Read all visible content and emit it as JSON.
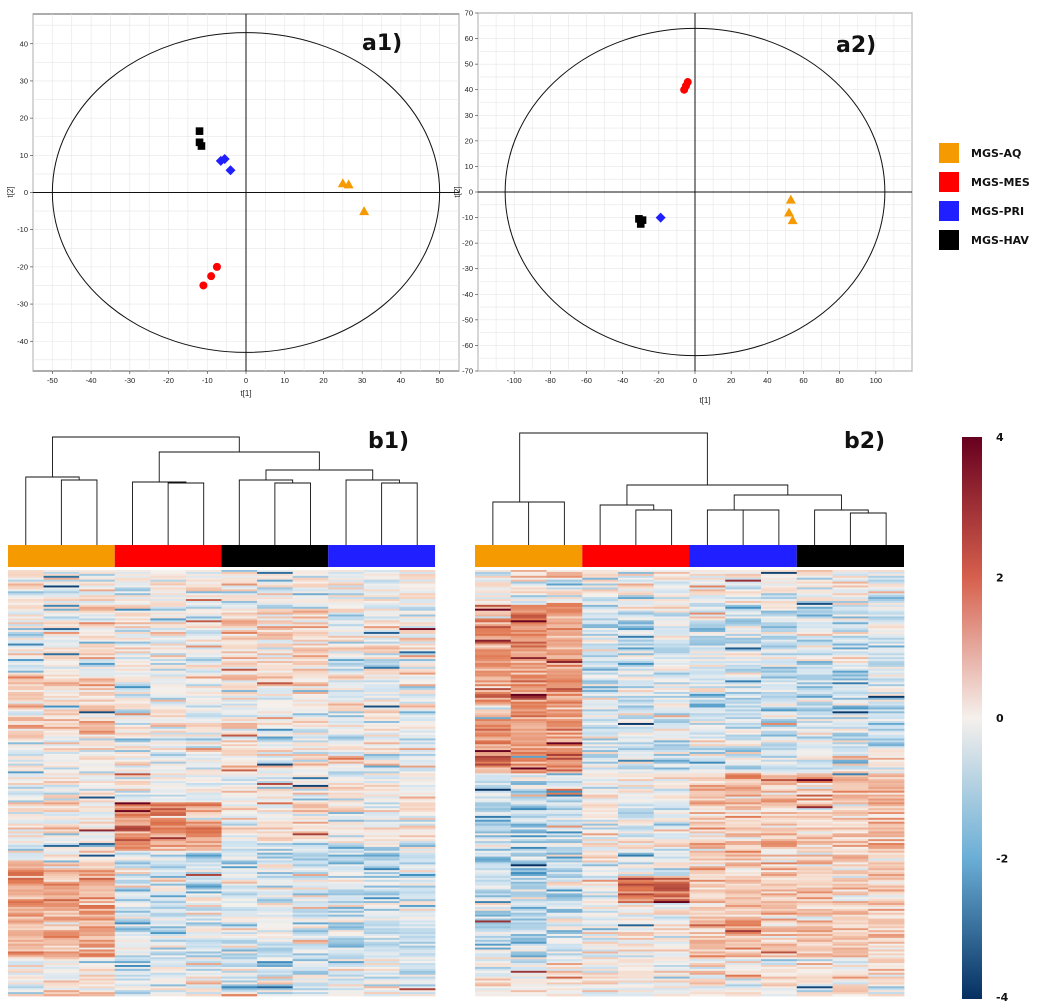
{
  "chart_data": [
    {
      "panel": "a1)",
      "type": "scatter",
      "xlabel": "t[1]",
      "ylabel": "t[2]",
      "xlim": [
        -55,
        55
      ],
      "ylim": [
        -48,
        48
      ],
      "xticks": [
        -50,
        -40,
        -30,
        -20,
        -10,
        0,
        10,
        20,
        30,
        40,
        50
      ],
      "yticks": [
        -40,
        -30,
        -20,
        -10,
        0,
        10,
        20,
        30,
        40
      ],
      "ellipse": {
        "rx": 50,
        "ry": 43
      },
      "grid": true,
      "series": [
        {
          "name": "MGS-AQ",
          "marker": "triangle",
          "points": [
            [
              25,
              2.5
            ],
            [
              26.5,
              2.2
            ],
            [
              30.5,
              -5
            ]
          ]
        },
        {
          "name": "MGS-MES",
          "marker": "circle",
          "points": [
            [
              -11,
              -25
            ],
            [
              -9,
              -22.5
            ],
            [
              -7.5,
              -20
            ]
          ]
        },
        {
          "name": "MGS-PRI",
          "marker": "diamond",
          "points": [
            [
              -6.5,
              8.5
            ],
            [
              -5.5,
              9
            ],
            [
              -4,
              6
            ]
          ]
        },
        {
          "name": "MGS-HAV",
          "marker": "square",
          "points": [
            [
              -12,
              16.5
            ],
            [
              -12,
              13.5
            ],
            [
              -11.5,
              12.5
            ]
          ]
        }
      ]
    },
    {
      "panel": "a2)",
      "type": "scatter",
      "xlabel": "t[1]",
      "ylabel": "t[2]",
      "xlim": [
        -120,
        120
      ],
      "ylim": [
        -70,
        70
      ],
      "xticks": [
        -100,
        -80,
        -60,
        -40,
        -20,
        0,
        20,
        40,
        60,
        80,
        100
      ],
      "yticks": [
        -70,
        -60,
        -50,
        -40,
        -30,
        -20,
        -10,
        0,
        10,
        20,
        30,
        40,
        50,
        60,
        70
      ],
      "ellipse": {
        "rx": 105,
        "ry": 64
      },
      "grid": true,
      "series": [
        {
          "name": "MGS-AQ",
          "marker": "triangle",
          "points": [
            [
              53,
              -3
            ],
            [
              52,
              -8
            ],
            [
              54,
              -11
            ]
          ]
        },
        {
          "name": "MGS-MES",
          "marker": "circle",
          "points": [
            [
              -4,
              43
            ],
            [
              -6,
              40
            ],
            [
              -5,
              41.5
            ]
          ]
        },
        {
          "name": "MGS-PRI",
          "marker": "diamond",
          "points": [
            [
              -19,
              -10
            ]
          ]
        },
        {
          "name": "MGS-HAV",
          "marker": "square",
          "points": [
            [
              -31,
              -10.5
            ],
            [
              -29,
              -11
            ],
            [
              -30,
              -12.5
            ]
          ]
        }
      ]
    },
    {
      "panel": "b1)",
      "type": "heatmap",
      "group_order": [
        "MGS-AQ",
        "MGS-MES",
        "MGS-HAV",
        "MGS-PRI"
      ],
      "columns_per_group": 3,
      "rows": 220,
      "color_range": [
        -4,
        4
      ]
    },
    {
      "panel": "b2)",
      "type": "heatmap",
      "group_order": [
        "MGS-AQ",
        "MGS-MES",
        "MGS-PRI",
        "MGS-HAV"
      ],
      "columns_per_group": 3,
      "rows": 220,
      "color_range": [
        -4,
        4
      ]
    }
  ],
  "legend": [
    {
      "name": "MGS-AQ",
      "color": "#f59a00"
    },
    {
      "name": "MGS-MES",
      "color": "#ff0000"
    },
    {
      "name": "MGS-PRI",
      "color": "#1f1fff"
    },
    {
      "name": "MGS-HAV",
      "color": "#000000"
    }
  ],
  "colorbar": {
    "ticks": [
      "4",
      "2",
      "0",
      "-2",
      "-4"
    ],
    "low": "#053061",
    "mid": "#f5f0ec",
    "high": "#67001f"
  }
}
